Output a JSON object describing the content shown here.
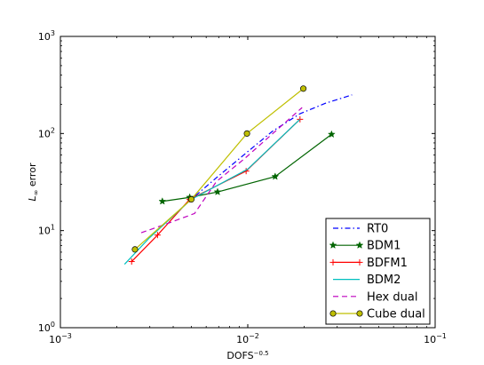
{
  "chart_data": {
    "type": "line",
    "xscale": "log",
    "yscale": "log",
    "xlim": [
      0.001,
      0.1
    ],
    "ylim": [
      1,
      1000
    ],
    "xlabel": "DOFS",
    "xlabel_exponent": "−0.5",
    "ylabel": "L",
    "ylabel_subscript": "∞",
    "ylabel_suffix": " error",
    "xticks": [
      {
        "value": 0.001,
        "base": "10",
        "exp": "−3"
      },
      {
        "value": 0.01,
        "base": "10",
        "exp": "−2"
      },
      {
        "value": 0.1,
        "base": "10",
        "exp": "−1"
      }
    ],
    "yticks": [
      {
        "value": 1,
        "base": "10",
        "exp": "0"
      },
      {
        "value": 10,
        "base": "10",
        "exp": "1"
      },
      {
        "value": 100,
        "base": "10",
        "exp": "2"
      },
      {
        "value": 1000,
        "base": "10",
        "exp": "3"
      }
    ],
    "legend_position": "lower-right",
    "series": [
      {
        "name": "RT0",
        "color": "#0000ff",
        "style": "dashdot",
        "marker": "none",
        "x": [
          0.0047,
          0.0068,
          0.0097,
          0.0135,
          0.019,
          0.026,
          0.036
        ],
        "y": [
          19,
          35,
          62,
          105,
          160,
          205,
          250
        ]
      },
      {
        "name": "BDM1",
        "color": "#006400",
        "style": "solid",
        "marker": "star",
        "x": [
          0.0035,
          0.0049,
          0.0069,
          0.014,
          0.028
        ],
        "y": [
          20,
          22,
          25,
          36,
          98
        ]
      },
      {
        "name": "BDFM1",
        "color": "#ff0000",
        "style": "solid",
        "marker": "plus",
        "x": [
          0.0024,
          0.0033,
          0.0049,
          0.0098,
          0.019
        ],
        "y": [
          4.8,
          9,
          21,
          41,
          140
        ]
      },
      {
        "name": "BDM2",
        "color": "#00bfbf",
        "style": "solid",
        "marker": "none",
        "x": [
          0.0022,
          0.003,
          0.005,
          0.01,
          0.019
        ],
        "y": [
          4.5,
          8.5,
          21,
          43,
          140
        ]
      },
      {
        "name": "Hex dual",
        "color": "#bf00bf",
        "style": "dashed",
        "marker": "none",
        "x": [
          0.0027,
          0.0038,
          0.0052,
          0.0068,
          0.0096,
          0.0136,
          0.0195
        ],
        "y": [
          9.5,
          12,
          15,
          32,
          55,
          100,
          185
        ]
      },
      {
        "name": "Cube dual",
        "color": "#bfbf00",
        "style": "solid",
        "marker": "circle",
        "x": [
          0.0025,
          0.005,
          0.0099,
          0.0198
        ],
        "y": [
          6.4,
          21,
          100,
          290
        ]
      }
    ]
  }
}
